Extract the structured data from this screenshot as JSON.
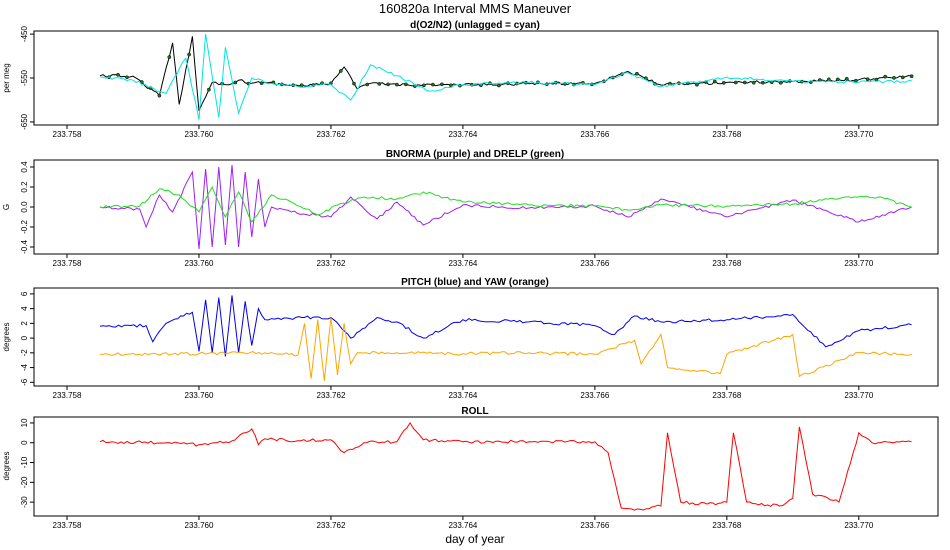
{
  "figure": {
    "title": "160820a   Interval MMS Maneuver",
    "xlabel": "day of year"
  },
  "chart_data": [
    {
      "type": "line",
      "title": "d(O2/N2) (unlagged = cyan)",
      "ylabel": "per meg",
      "xlim": [
        233.7575,
        233.7712
      ],
      "ylim": [
        -657,
        -443
      ],
      "xticks": [
        233.758,
        233.76,
        233.762,
        233.764,
        233.766,
        233.768,
        233.77
      ],
      "xtick_labels": [
        "233.758",
        "233.760",
        "233.762",
        "233.764",
        "233.766",
        "233.768",
        "233.770"
      ],
      "yticks": [
        -650,
        -550,
        -450
      ],
      "ytick_labels": [
        "-650",
        "-550",
        "-450"
      ],
      "series": [
        {
          "color": "#000000",
          "style": "line+points",
          "x": [
            233.7585,
            233.759,
            233.7594,
            233.7596,
            233.7597,
            233.7599,
            233.76,
            233.7602,
            233.7604,
            233.7606,
            233.7608,
            233.761,
            233.7613,
            233.7616,
            233.762,
            233.7622,
            233.7624,
            233.7626,
            233.763,
            233.764,
            233.765,
            233.766,
            233.7665,
            233.767,
            233.768,
            233.769,
            233.77,
            233.7708
          ],
          "y": [
            -545,
            -546,
            -590,
            -470,
            -610,
            -455,
            -625,
            -560,
            -565,
            -555,
            -562,
            -560,
            -565,
            -568,
            -562,
            -525,
            -575,
            -562,
            -565,
            -566,
            -563,
            -562,
            -535,
            -566,
            -560,
            -558,
            -554,
            -546
          ]
        },
        {
          "color": "#00e5e5",
          "style": "line",
          "x": [
            233.7585,
            233.759,
            233.7595,
            233.7598,
            233.76,
            233.7601,
            233.7603,
            233.7604,
            233.7606,
            233.7608,
            233.761,
            233.7612,
            233.7615,
            233.762,
            233.7623,
            233.7626,
            233.763,
            233.7635,
            233.764,
            233.765,
            233.766,
            233.7665,
            233.767,
            233.768,
            233.769,
            233.77,
            233.7708
          ],
          "y": [
            -548,
            -555,
            -585,
            -505,
            -645,
            -450,
            -640,
            -480,
            -630,
            -550,
            -560,
            -565,
            -570,
            -565,
            -600,
            -520,
            -545,
            -580,
            -565,
            -560,
            -565,
            -538,
            -570,
            -548,
            -558,
            -560,
            -556
          ]
        }
      ]
    },
    {
      "type": "line",
      "title": "BNORMA (purple) and DRELP (green)",
      "ylabel": "G",
      "xlim": [
        233.7575,
        233.7712
      ],
      "ylim": [
        -0.47,
        0.47
      ],
      "xticks": [
        233.758,
        233.76,
        233.762,
        233.764,
        233.766,
        233.768,
        233.77
      ],
      "xtick_labels": [
        "233.758",
        "233.760",
        "233.762",
        "233.764",
        "233.766",
        "233.768",
        "233.770"
      ],
      "yticks": [
        -0.4,
        -0.2,
        0.0,
        0.2,
        0.4
      ],
      "ytick_labels": [
        "-0.4",
        "-0.2",
        "0.0",
        "0.2",
        "0.4"
      ],
      "series": [
        {
          "color": "#a020f0",
          "style": "line",
          "x": [
            233.7585,
            233.7591,
            233.7592,
            233.7594,
            233.7596,
            233.7599,
            233.76,
            233.7601,
            233.7602,
            233.7603,
            233.7604,
            233.7605,
            233.7606,
            233.7607,
            233.7608,
            233.7609,
            233.761,
            233.7611,
            233.7614,
            233.762,
            233.7623,
            233.7627,
            233.763,
            233.7634,
            233.764,
            233.765,
            233.766,
            233.7665,
            233.767,
            233.768,
            233.769,
            233.77,
            233.7708
          ],
          "y": [
            0.0,
            -0.02,
            -0.2,
            0.12,
            -0.05,
            0.35,
            -0.42,
            0.38,
            -0.4,
            0.4,
            -0.38,
            0.42,
            -0.4,
            0.35,
            -0.3,
            0.28,
            -0.2,
            0.0,
            -0.05,
            -0.1,
            0.1,
            -0.12,
            0.05,
            -0.18,
            0.02,
            -0.01,
            0.01,
            -0.1,
            0.08,
            -0.1,
            0.07,
            -0.15,
            0.0
          ]
        },
        {
          "color": "#22dd22",
          "style": "line",
          "x": [
            233.7585,
            233.7591,
            233.7594,
            233.7597,
            233.76,
            233.7602,
            233.7604,
            233.7606,
            233.7608,
            233.7611,
            233.7614,
            233.7618,
            233.7621,
            233.7625,
            233.763,
            233.7634,
            233.764,
            233.765,
            233.766,
            233.7665,
            233.767,
            233.768,
            233.769,
            233.7698,
            233.7703,
            233.7708
          ],
          "y": [
            0.0,
            0.01,
            0.18,
            0.12,
            -0.05,
            0.2,
            -0.1,
            0.15,
            -0.15,
            0.12,
            0.05,
            -0.08,
            0.02,
            0.1,
            0.08,
            0.15,
            0.05,
            0.02,
            0.01,
            -0.03,
            0.02,
            0.01,
            0.03,
            0.1,
            0.1,
            0.0
          ]
        }
      ]
    },
    {
      "type": "line",
      "title": "PITCH (blue) and YAW (orange)",
      "ylabel": "degrees",
      "xlim": [
        233.7575,
        233.7712
      ],
      "ylim": [
        -6.5,
        6.8
      ],
      "xticks": [
        233.758,
        233.76,
        233.762,
        233.764,
        233.766,
        233.768,
        233.77
      ],
      "xtick_labels": [
        "233.758",
        "233.760",
        "233.762",
        "233.764",
        "233.766",
        "233.768",
        "233.770"
      ],
      "yticks": [
        -6,
        -4,
        -2,
        0,
        2,
        4,
        6
      ],
      "ytick_labels": [
        "-6",
        "-4",
        "-2",
        "0",
        "2",
        "4",
        "6"
      ],
      "series": [
        {
          "color": "#0000ee",
          "style": "line",
          "x": [
            233.7585,
            233.7592,
            233.7593,
            233.7595,
            233.7599,
            233.76,
            233.7601,
            233.7602,
            233.7603,
            233.7604,
            233.7605,
            233.7606,
            233.7607,
            233.7608,
            233.7609,
            233.761,
            233.7612,
            233.7616,
            233.762,
            233.7623,
            233.7627,
            233.763,
            233.7634,
            233.764,
            233.765,
            233.766,
            233.7663,
            233.7666,
            233.767,
            233.768,
            233.769,
            233.7695,
            233.77,
            233.7708
          ],
          "y": [
            1.6,
            1.7,
            -0.5,
            2.0,
            3.5,
            -1.8,
            5.2,
            -2.0,
            5.5,
            -2.5,
            5.8,
            -2.0,
            5.0,
            -1.0,
            4.0,
            2.5,
            2.7,
            2.8,
            2.8,
            0.0,
            2.8,
            2.2,
            0.0,
            2.5,
            2.2,
            1.7,
            0.5,
            3.0,
            2.2,
            2.5,
            3.2,
            -1.2,
            1.0,
            1.8
          ]
        },
        {
          "color": "#ffa500",
          "style": "line",
          "x": [
            233.7585,
            233.76,
            233.761,
            233.7615,
            233.7616,
            233.7617,
            233.7618,
            233.7619,
            233.762,
            233.7621,
            233.7622,
            233.7623,
            233.7624,
            233.763,
            233.764,
            233.765,
            233.766,
            233.7666,
            233.7667,
            233.767,
            233.7671,
            233.7679,
            233.768,
            233.769,
            233.7691,
            233.77,
            233.7708
          ],
          "y": [
            -2.2,
            -2.1,
            -2.0,
            -2.3,
            2.0,
            -5.5,
            2.5,
            -5.8,
            2.8,
            -5.0,
            2.0,
            -3.5,
            -2.0,
            -2.0,
            -2.1,
            -2.0,
            -2.2,
            -0.3,
            -3.5,
            0.5,
            -4.0,
            -4.8,
            -2.2,
            0.5,
            -5.2,
            -2.0,
            -2.2
          ]
        }
      ]
    },
    {
      "type": "line",
      "title": "ROLL",
      "ylabel": "degrees",
      "xlim": [
        233.7575,
        233.7712
      ],
      "ylim": [
        -37,
        13
      ],
      "xticks": [
        233.758,
        233.76,
        233.762,
        233.764,
        233.766,
        233.768,
        233.77
      ],
      "xtick_labels": [
        "233.758",
        "233.760",
        "233.762",
        "233.764",
        "233.766",
        "233.768",
        "233.770"
      ],
      "yticks": [
        -30,
        -20,
        -10,
        0,
        10
      ],
      "ytick_labels": [
        "-30",
        "-20",
        "-10",
        "0",
        "10"
      ],
      "series": [
        {
          "color": "#ff0000",
          "style": "line",
          "x": [
            233.7585,
            233.7595,
            233.76,
            233.7605,
            233.7608,
            233.7609,
            233.761,
            233.7615,
            233.762,
            233.7622,
            233.7625,
            233.763,
            233.7632,
            233.7634,
            233.764,
            233.765,
            233.766,
            233.7662,
            233.7664,
            233.7666,
            233.767,
            233.7671,
            233.7673,
            233.7677,
            233.768,
            233.7681,
            233.7683,
            233.7688,
            233.769,
            233.7691,
            233.7693,
            233.7697,
            233.77,
            233.7702,
            233.7708
          ],
          "y": [
            0.5,
            0.0,
            -1.0,
            1.0,
            7.0,
            -1.0,
            2.0,
            1.0,
            1.5,
            -5.0,
            0.0,
            0.5,
            10.0,
            1.5,
            0.5,
            0.5,
            0.5,
            -5.0,
            -33.0,
            -34.0,
            -32.0,
            5.0,
            -30.0,
            -31.0,
            -30.0,
            5.0,
            -30.0,
            -32.0,
            -28.0,
            8.0,
            -26.0,
            -30.0,
            5.0,
            0.0,
            0.5
          ]
        }
      ]
    }
  ]
}
